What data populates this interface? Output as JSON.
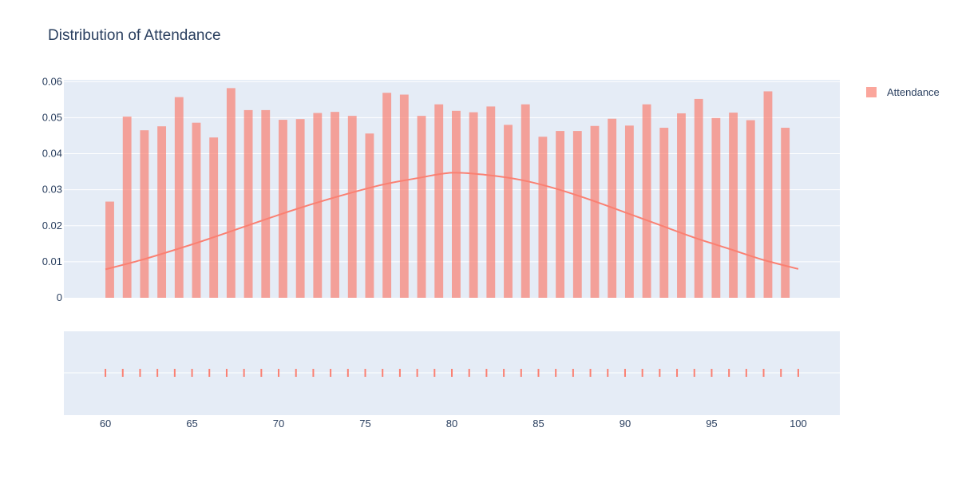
{
  "chart_data": {
    "type": "bar",
    "title": "Distribution of Attendance",
    "xlabel": "",
    "ylabel": "",
    "xlim": [
      57.6,
      102.4
    ],
    "ylim": [
      0,
      0.0605
    ],
    "x_ticks": [
      60,
      65,
      70,
      75,
      80,
      85,
      90,
      95,
      100
    ],
    "y_ticks": [
      0,
      0.01,
      0.02,
      0.03,
      0.04,
      0.05,
      0.06
    ],
    "y_tick_labels": [
      "0",
      "0.01",
      "0.02",
      "0.03",
      "0.04",
      "0.05",
      "0.06"
    ],
    "grid": true,
    "legend_position": "top-right",
    "colors": {
      "series": "#fa8072",
      "plot_bg": "#e5ecf6",
      "grid": "#ffffff",
      "text": "#2a3f5f"
    },
    "series": [
      {
        "name": "Attendance",
        "type": "histogram",
        "x": [
          60,
          61,
          62,
          63,
          64,
          65,
          66,
          67,
          68,
          69,
          70,
          71,
          72,
          73,
          74,
          75,
          76,
          77,
          78,
          79,
          80,
          81,
          82,
          83,
          84,
          85,
          86,
          87,
          88,
          89,
          90,
          91,
          92,
          93,
          94,
          95,
          96,
          97,
          98,
          99
        ],
        "values": [
          0.0267,
          0.0503,
          0.0465,
          0.0476,
          0.0557,
          0.0486,
          0.0445,
          0.0582,
          0.0521,
          0.0521,
          0.0494,
          0.0496,
          0.0513,
          0.0516,
          0.0505,
          0.0456,
          0.0569,
          0.0564,
          0.0505,
          0.0537,
          0.0519,
          0.0515,
          0.0531,
          0.048,
          0.0537,
          0.0447,
          0.0463,
          0.0463,
          0.0477,
          0.0497,
          0.0478,
          0.0537,
          0.0472,
          0.0512,
          0.0552,
          0.0499,
          0.0514,
          0.0493,
          0.0573,
          0.0472
        ]
      }
    ],
    "curve": {
      "type": "line",
      "x": [
        60,
        62,
        64,
        66,
        68,
        70,
        72,
        74,
        76,
        78,
        80,
        82,
        84,
        86,
        88,
        90,
        92,
        94,
        96,
        98,
        100
      ],
      "values": [
        0.0079,
        0.0104,
        0.0133,
        0.0164,
        0.0197,
        0.023,
        0.0261,
        0.0289,
        0.0314,
        0.0332,
        0.0347,
        0.0341,
        0.0327,
        0.0303,
        0.0272,
        0.0237,
        0.0202,
        0.0167,
        0.0136,
        0.0105,
        0.008
      ]
    },
    "rug": {
      "x": [
        60,
        61,
        62,
        63,
        64,
        65,
        66,
        67,
        68,
        69,
        70,
        71,
        72,
        73,
        74,
        75,
        76,
        77,
        78,
        79,
        80,
        81,
        82,
        83,
        84,
        85,
        86,
        87,
        88,
        89,
        90,
        91,
        92,
        93,
        94,
        95,
        96,
        97,
        98,
        99,
        100
      ]
    }
  }
}
